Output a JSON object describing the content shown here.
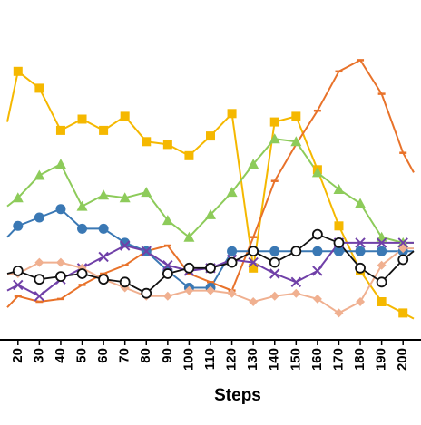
{
  "chart_data": {
    "type": "line",
    "xlabel": "Steps",
    "ylabel": "",
    "title": "",
    "x_ticks": [
      20,
      30,
      40,
      50,
      60,
      70,
      80,
      90,
      100,
      110,
      120,
      130,
      140,
      150,
      160,
      170,
      180,
      190,
      200
    ],
    "x_range": [
      15,
      205
    ],
    "y_range": [
      0,
      1
    ],
    "grid": false,
    "legend": "none",
    "series": [
      {
        "color": "#f5b800",
        "marker": "square",
        "points": [
          [
            15,
            0.74
          ],
          [
            20,
            0.92
          ],
          [
            30,
            0.86
          ],
          [
            40,
            0.71
          ],
          [
            50,
            0.75
          ],
          [
            60,
            0.71
          ],
          [
            70,
            0.76
          ],
          [
            80,
            0.67
          ],
          [
            90,
            0.66
          ],
          [
            100,
            0.62
          ],
          [
            110,
            0.69
          ],
          [
            120,
            0.77
          ],
          [
            130,
            0.22
          ],
          [
            140,
            0.74
          ],
          [
            150,
            0.76
          ],
          [
            160,
            0.57
          ],
          [
            170,
            0.37
          ],
          [
            180,
            0.21
          ],
          [
            190,
            0.1
          ],
          [
            200,
            0.06
          ],
          [
            205,
            0.04
          ]
        ]
      },
      {
        "color": "#e8722a",
        "marker": "dash",
        "points": [
          [
            15,
            0.08
          ],
          [
            20,
            0.12
          ],
          [
            30,
            0.1
          ],
          [
            40,
            0.11
          ],
          [
            50,
            0.16
          ],
          [
            60,
            0.2
          ],
          [
            70,
            0.23
          ],
          [
            80,
            0.28
          ],
          [
            90,
            0.3
          ],
          [
            100,
            0.2
          ],
          [
            110,
            0.17
          ],
          [
            120,
            0.14
          ],
          [
            130,
            0.33
          ],
          [
            140,
            0.53
          ],
          [
            150,
            0.66
          ],
          [
            160,
            0.78
          ],
          [
            170,
            0.92
          ],
          [
            180,
            0.96
          ],
          [
            190,
            0.84
          ],
          [
            200,
            0.63
          ],
          [
            205,
            0.56
          ]
        ]
      },
      {
        "color": "#8dcb5a",
        "marker": "triangle",
        "points": [
          [
            15,
            0.44
          ],
          [
            20,
            0.47
          ],
          [
            30,
            0.55
          ],
          [
            40,
            0.59
          ],
          [
            50,
            0.44
          ],
          [
            60,
            0.48
          ],
          [
            70,
            0.47
          ],
          [
            80,
            0.49
          ],
          [
            90,
            0.39
          ],
          [
            100,
            0.33
          ],
          [
            110,
            0.41
          ],
          [
            120,
            0.49
          ],
          [
            130,
            0.59
          ],
          [
            140,
            0.68
          ],
          [
            150,
            0.67
          ],
          [
            160,
            0.56
          ],
          [
            170,
            0.5
          ],
          [
            180,
            0.45
          ],
          [
            190,
            0.33
          ],
          [
            200,
            0.31
          ],
          [
            205,
            0.31
          ]
        ]
      },
      {
        "color": "#3a78b4",
        "marker": "circle",
        "points": [
          [
            15,
            0.33
          ],
          [
            20,
            0.37
          ],
          [
            30,
            0.4
          ],
          [
            40,
            0.43
          ],
          [
            50,
            0.36
          ],
          [
            60,
            0.36
          ],
          [
            70,
            0.31
          ],
          [
            80,
            0.28
          ],
          [
            90,
            0.21
          ],
          [
            100,
            0.15
          ],
          [
            110,
            0.15
          ],
          [
            120,
            0.28
          ],
          [
            130,
            0.28
          ],
          [
            140,
            0.28
          ],
          [
            150,
            0.28
          ],
          [
            160,
            0.28
          ],
          [
            170,
            0.28
          ],
          [
            180,
            0.28
          ],
          [
            190,
            0.28
          ],
          [
            200,
            0.28
          ],
          [
            205,
            0.28
          ]
        ]
      },
      {
        "color": "#7040a8",
        "marker": "x",
        "points": [
          [
            15,
            0.14
          ],
          [
            20,
            0.16
          ],
          [
            30,
            0.12
          ],
          [
            40,
            0.18
          ],
          [
            50,
            0.22
          ],
          [
            60,
            0.26
          ],
          [
            70,
            0.3
          ],
          [
            80,
            0.28
          ],
          [
            90,
            0.23
          ],
          [
            100,
            0.21
          ],
          [
            110,
            0.22
          ],
          [
            120,
            0.25
          ],
          [
            130,
            0.24
          ],
          [
            140,
            0.2
          ],
          [
            150,
            0.17
          ],
          [
            160,
            0.21
          ],
          [
            170,
            0.31
          ],
          [
            180,
            0.31
          ],
          [
            190,
            0.31
          ],
          [
            200,
            0.31
          ],
          [
            205,
            0.31
          ]
        ]
      },
      {
        "color": "#f0b090",
        "marker": "diamond",
        "points": [
          [
            15,
            0.2
          ],
          [
            20,
            0.2
          ],
          [
            30,
            0.24
          ],
          [
            40,
            0.24
          ],
          [
            50,
            0.22
          ],
          [
            60,
            0.18
          ],
          [
            70,
            0.15
          ],
          [
            80,
            0.12
          ],
          [
            90,
            0.12
          ],
          [
            100,
            0.14
          ],
          [
            110,
            0.14
          ],
          [
            120,
            0.13
          ],
          [
            130,
            0.1
          ],
          [
            140,
            0.12
          ],
          [
            150,
            0.13
          ],
          [
            160,
            0.11
          ],
          [
            170,
            0.06
          ],
          [
            180,
            0.1
          ],
          [
            190,
            0.23
          ],
          [
            200,
            0.29
          ],
          [
            205,
            0.29
          ]
        ]
      },
      {
        "color": "#111111",
        "marker": "open-circle",
        "points": [
          [
            15,
            0.2
          ],
          [
            20,
            0.21
          ],
          [
            30,
            0.18
          ],
          [
            40,
            0.19
          ],
          [
            50,
            0.2
          ],
          [
            60,
            0.18
          ],
          [
            70,
            0.17
          ],
          [
            80,
            0.13
          ],
          [
            90,
            0.2
          ],
          [
            100,
            0.22
          ],
          [
            110,
            0.22
          ],
          [
            120,
            0.24
          ],
          [
            130,
            0.28
          ],
          [
            140,
            0.24
          ],
          [
            150,
            0.28
          ],
          [
            160,
            0.34
          ],
          [
            170,
            0.31
          ],
          [
            180,
            0.22
          ],
          [
            190,
            0.17
          ],
          [
            200,
            0.25
          ],
          [
            205,
            0.28
          ]
        ]
      }
    ]
  }
}
